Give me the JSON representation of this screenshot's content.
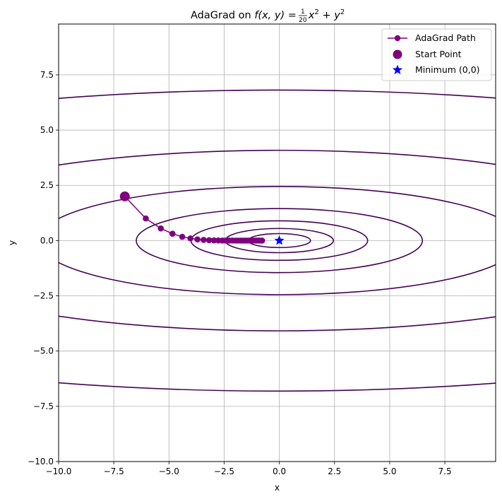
{
  "chart_data": {
    "type": "line",
    "title_prefix": "AdaGrad on ",
    "title_math": "f(x,y) = (1/20)x² + y²",
    "title_math_parts": {
      "func": "f(x, y) = ",
      "num": "1",
      "den": "20",
      "x": "x",
      "sq": "2",
      "plus": " + y",
      "sq2": "2"
    },
    "xlabel": "x",
    "ylabel": "y",
    "xlim": [
      -10,
      9.8
    ],
    "ylim": [
      -10,
      9.8
    ],
    "xticks": [
      "−10.0",
      "−7.5",
      "−5.0",
      "−2.5",
      "0.0",
      "2.5",
      "5.0",
      "7.5"
    ],
    "xtick_values": [
      -10,
      -7.5,
      -5,
      -2.5,
      0,
      2.5,
      5,
      7.5
    ],
    "yticks": [
      "−10.0",
      "−7.5",
      "−5.0",
      "−2.5",
      "0.0",
      "2.5",
      "5.0",
      "7.5"
    ],
    "ytick_values": [
      -10,
      -7.5,
      -5,
      -2.5,
      0,
      2.5,
      5,
      7.5
    ],
    "grid": true,
    "legend_position": "top-right",
    "contour_levels": [
      0.1,
      0.3,
      0.8,
      2.1,
      5.99,
      16.7,
      46.4
    ],
    "contour_color": "#440154",
    "series": [
      {
        "name": "AdaGrad Path",
        "color": "#800080",
        "x": [
          -7.0,
          -6.05,
          -5.37,
          -4.84,
          -4.4,
          -4.03,
          -3.71,
          -3.43,
          -3.18,
          -2.96,
          -2.76,
          -2.58,
          -2.42,
          -2.27,
          -2.13,
          -2.0,
          -1.88,
          -1.77,
          -1.66,
          -1.56,
          -1.47,
          -1.38,
          -1.3,
          -1.22,
          -1.15,
          -1.08,
          -1.01,
          -0.95,
          -0.89,
          -0.83,
          -0.78
        ],
        "y": [
          2.0,
          1.0,
          0.55,
          0.31,
          0.17,
          0.1,
          0.055,
          0.03,
          0.017,
          0.01,
          0.005,
          0.003,
          0.0016,
          0.0009,
          0.0005,
          0.0003,
          0.0001,
          0.0001,
          0,
          0,
          0,
          0,
          0,
          0,
          0,
          0,
          0,
          0,
          0,
          0,
          0
        ]
      },
      {
        "name": "Start Point",
        "color": "#800080",
        "x": [
          -7.0
        ],
        "y": [
          2.0
        ]
      },
      {
        "name": "Minimum (0,0)",
        "color": "#0000ff",
        "x": [
          0
        ],
        "y": [
          0
        ]
      }
    ]
  }
}
